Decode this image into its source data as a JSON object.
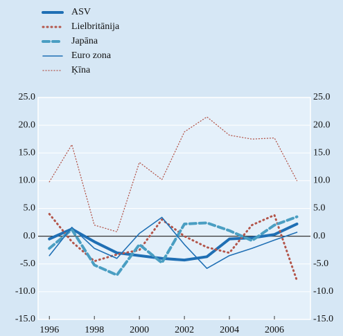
{
  "chart_data": {
    "type": "line",
    "x": [
      1996,
      1997,
      1998,
      1999,
      2000,
      2001,
      2002,
      2003,
      2004,
      2005,
      2006,
      2007
    ],
    "series": [
      {
        "name": "ASV",
        "color": "#1f6fb4",
        "width": 4,
        "dash": "none",
        "values": [
          -0.5,
          1.3,
          -1.0,
          -3.0,
          -3.5,
          -4.0,
          -4.3,
          -3.7,
          -0.5,
          -0.3,
          0.3,
          2.2
        ]
      },
      {
        "name": "Lielbritānija",
        "color": "#b3554a",
        "width": 3,
        "dash": "1 5",
        "values": [
          4.0,
          -1.0,
          -4.5,
          -3.3,
          -2.5,
          3.0,
          0.0,
          -2.0,
          -3.0,
          2.0,
          3.8,
          -8.0
        ]
      },
      {
        "name": "Japāna",
        "color": "#4a9ec2",
        "width": 4,
        "dash": "9 5",
        "values": [
          -2.2,
          1.2,
          -5.2,
          -7.0,
          -1.5,
          -4.8,
          2.2,
          2.4,
          1.0,
          -0.8,
          2.0,
          3.5
        ]
      },
      {
        "name": "Euro zona",
        "color": "#1f6fb4",
        "width": 1.6,
        "dash": "none",
        "values": [
          -3.5,
          1.6,
          -2.2,
          -4.0,
          0.5,
          3.4,
          -1.5,
          -5.8,
          -3.5,
          -2.2,
          -0.7,
          0.7
        ]
      },
      {
        "name": "Ķīna",
        "color": "#b3554a",
        "width": 1.3,
        "dash": "1 3",
        "values": [
          9.8,
          16.5,
          2.0,
          0.8,
          13.3,
          10.2,
          18.8,
          21.5,
          18.2,
          17.5,
          17.7,
          10.0
        ]
      }
    ],
    "xlim": [
      1995.5,
      2007.6
    ],
    "xticks": [
      1996,
      1998,
      2000,
      2002,
      2004,
      2006
    ],
    "ylim": [
      -15,
      25
    ],
    "yticks": [
      {
        "value": -15,
        "label": "-15.0"
      },
      {
        "value": -10,
        "label": "-10.0"
      },
      {
        "value": -5,
        "label": "-5.0"
      },
      {
        "value": 0,
        "label": "0.0"
      },
      {
        "value": 5,
        "label": "5.0"
      },
      {
        "value": 10,
        "label": "10.0"
      },
      {
        "value": 15,
        "label": "15.0"
      },
      {
        "value": 20,
        "label": "20.0"
      },
      {
        "value": 25,
        "label": "25.0"
      }
    ],
    "grid": true
  }
}
